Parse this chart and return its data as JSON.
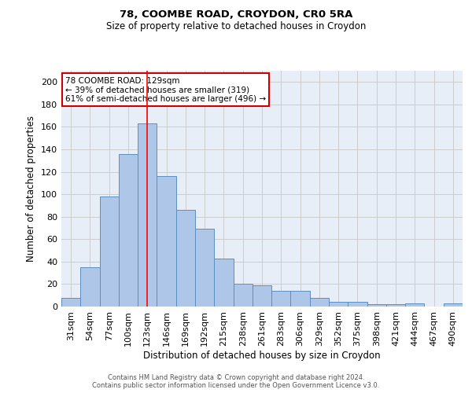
{
  "title1": "78, COOMBE ROAD, CROYDON, CR0 5RA",
  "title2": "Size of property relative to detached houses in Croydon",
  "xlabel": "Distribution of detached houses by size in Croydon",
  "ylabel": "Number of detached properties",
  "categories": [
    "31sqm",
    "54sqm",
    "77sqm",
    "100sqm",
    "123sqm",
    "146sqm",
    "169sqm",
    "192sqm",
    "215sqm",
    "238sqm",
    "261sqm",
    "283sqm",
    "306sqm",
    "329sqm",
    "352sqm",
    "375sqm",
    "398sqm",
    "421sqm",
    "444sqm",
    "467sqm",
    "490sqm"
  ],
  "values": [
    8,
    35,
    98,
    136,
    163,
    116,
    86,
    69,
    43,
    20,
    19,
    14,
    14,
    8,
    4,
    4,
    2,
    2,
    3,
    0,
    3
  ],
  "bar_color": "#aec6e8",
  "bar_edge_color": "#5a8fc2",
  "ylim": [
    0,
    210
  ],
  "yticks": [
    0,
    20,
    40,
    60,
    80,
    100,
    120,
    140,
    160,
    180,
    200
  ],
  "grid_color": "#cccccc",
  "bg_color": "#e8eef8",
  "annotation_text": "78 COOMBE ROAD: 129sqm\n← 39% of detached houses are smaller (319)\n61% of semi-detached houses are larger (496) →",
  "annotation_box_color": "#ffffff",
  "annotation_box_edge": "#cc0000",
  "red_line_x": 4.0,
  "footer1": "Contains HM Land Registry data © Crown copyright and database right 2024.",
  "footer2": "Contains public sector information licensed under the Open Government Licence v3.0."
}
